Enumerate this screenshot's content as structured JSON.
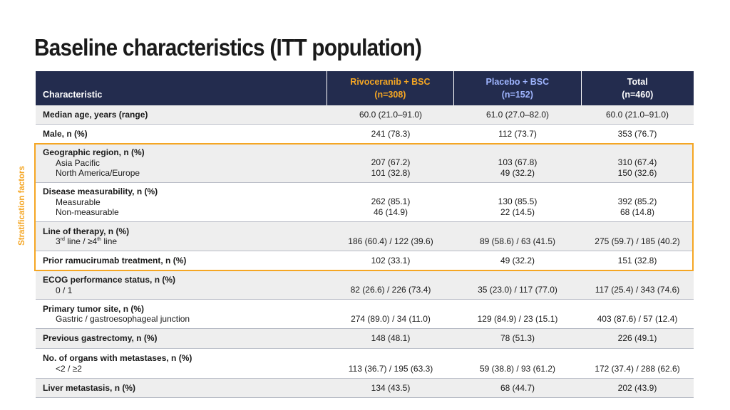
{
  "title": "Baseline characteristics (ITT population)",
  "side_label": "Stratification factors",
  "colors": {
    "header_bg": "#232c4e",
    "rivoceranib": "#f5a623",
    "placebo": "#9fb5ff",
    "highlight": "#f5a623"
  },
  "header": {
    "characteristic": "Characteristic",
    "rivoceranib": {
      "name": "Rivoceranib + BSC",
      "n": "(n=308)"
    },
    "placebo": {
      "name": "Placebo + BSC",
      "n": "(n=152)"
    },
    "total": {
      "name": "Total",
      "n": "(n=460)"
    }
  },
  "rows": {
    "median_age": {
      "label": "Median age, years (range)",
      "rivo": "60.0 (21.0–91.0)",
      "plac": "61.0 (27.0–82.0)",
      "total": "60.0 (21.0–91.0)"
    },
    "male": {
      "label": "Male, n (%)",
      "rivo": "241 (78.3)",
      "plac": "112 (73.7)",
      "total": "353 (76.7)"
    },
    "region": {
      "label": "Geographic region, n (%)",
      "sub1": "Asia Pacific",
      "sub2": "North America/Europe",
      "rivo1": "207 (67.2)",
      "rivo2": "101 (32.8)",
      "plac1": "103 (67.8)",
      "plac2": "49 (32.2)",
      "total1": "310 (67.4)",
      "total2": "150 (32.6)"
    },
    "measurability": {
      "label": "Disease measurability, n (%)",
      "sub1": "Measurable",
      "sub2": "Non-measurable",
      "rivo1": "262 (85.1)",
      "rivo2": "46 (14.9)",
      "plac1": "130 (85.5)",
      "plac2": "22 (14.5)",
      "total1": "392 (85.2)",
      "total2": "68 (14.8)"
    },
    "line_therapy": {
      "label": "Line of therapy, n (%)",
      "rivo": "186 (60.4) / 122 (39.6)",
      "plac": "89 (58.6) / 63 (41.5)",
      "total": "275 (59.7) / 185 (40.2)"
    },
    "ramucirumab": {
      "label": "Prior ramucirumab treatment, n (%)",
      "rivo": "102 (33.1)",
      "plac": "49 (32.2)",
      "total": "151 (32.8)"
    },
    "ecog": {
      "label": "ECOG performance status, n (%)",
      "sub": "0 / 1",
      "rivo": "82 (26.6) / 226 (73.4)",
      "plac": "35 (23.0) / 117 (77.0)",
      "total": "117 (25.4) / 343 (74.6)"
    },
    "tumor_site": {
      "label": "Primary tumor site, n (%)",
      "sub": "Gastric / gastroesophageal junction",
      "rivo": "274 (89.0) / 34 (11.0)",
      "plac": "129 (84.9) / 23 (15.1)",
      "total": "403 (87.6) / 57 (12.4)"
    },
    "gastrectomy": {
      "label": "Previous gastrectomy, n (%)",
      "rivo": "148 (48.1)",
      "plac": "78 (51.3)",
      "total": "226 (49.1)"
    },
    "organs": {
      "label": "No. of organs with metastases, n (%)",
      "sub": "<2 / ≥2",
      "rivo": "113 (36.7) / 195 (63.3)",
      "plac": "59 (38.8) / 93 (61.2)",
      "total": "172 (37.4) / 288 (62.6)"
    },
    "liver": {
      "label": "Liver metastasis, n (%)",
      "rivo": "134 (43.5)",
      "plac": "68 (44.7)",
      "total": "202 (43.9)"
    }
  }
}
